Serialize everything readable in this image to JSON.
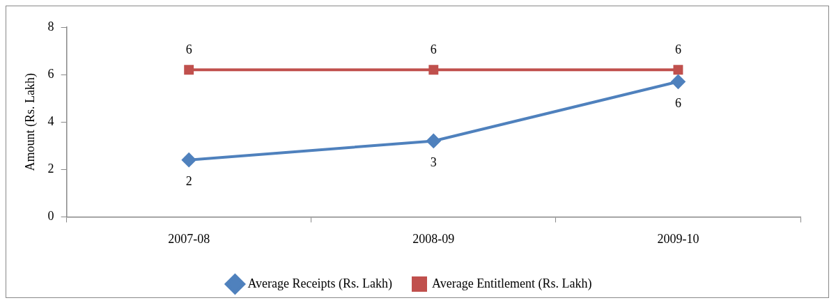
{
  "chart_data": {
    "type": "line",
    "ylabel": "Amount (Rs. Lakh)",
    "categories": [
      "2007-08",
      "2008-09",
      "2009-10"
    ],
    "series": [
      {
        "name": "Average Receipts (Rs. Lakh)",
        "color": "#4f81bd",
        "values": [
          2.4,
          3.2,
          5.7
        ],
        "value_labels": [
          "2",
          "3",
          "6"
        ],
        "marker": "diamond"
      },
      {
        "name": "Average Entitlement (Rs. Lakh)",
        "color": "#c0504d",
        "values": [
          6.2,
          6.2,
          6.2
        ],
        "value_labels": [
          "6",
          "6",
          "6"
        ],
        "marker": "square"
      }
    ],
    "ylim": [
      0,
      8
    ],
    "yticks": [
      0,
      2,
      4,
      6,
      8
    ],
    "grid": false,
    "legend": "bottom",
    "line_style": "solid"
  }
}
